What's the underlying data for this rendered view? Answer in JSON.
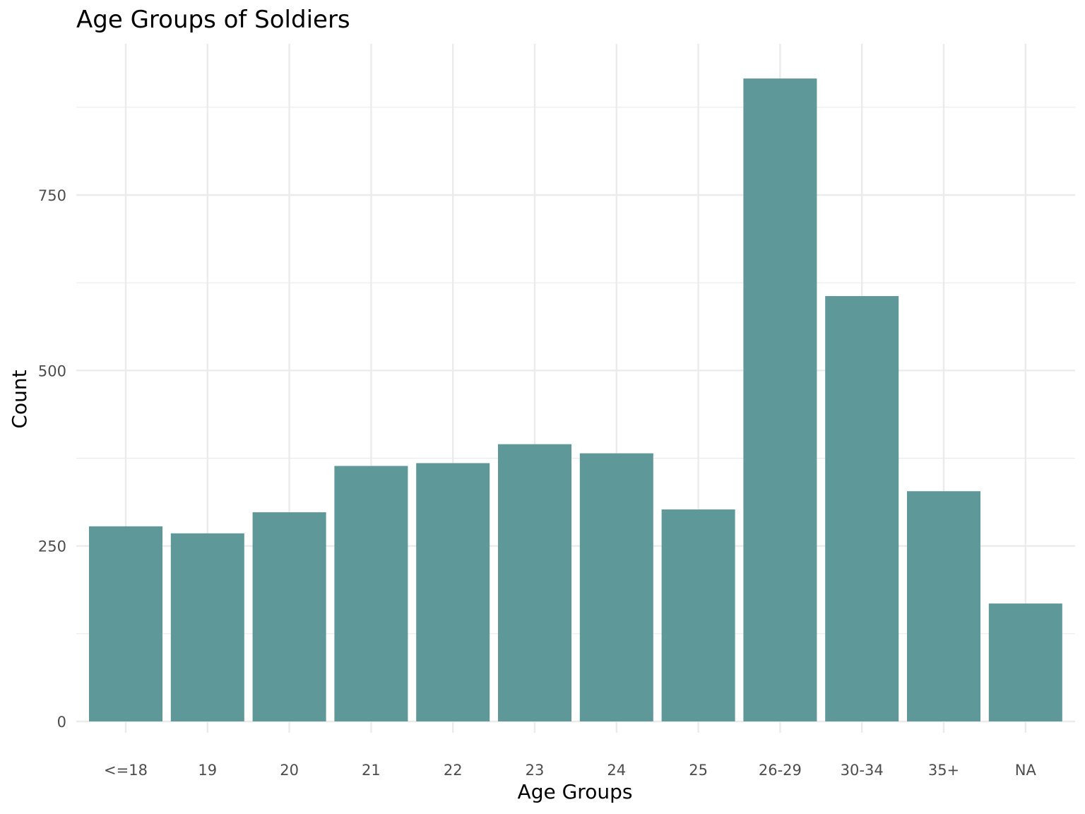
{
  "chart_data": {
    "type": "bar",
    "title": "Age Groups of Soldiers",
    "xlabel": "Age Groups",
    "ylabel": "Count",
    "categories": [
      "<=18",
      "19",
      "20",
      "21",
      "22",
      "23",
      "24",
      "25",
      "26-29",
      "30-34",
      "35+",
      "NA"
    ],
    "values": [
      278,
      268,
      298,
      364,
      368,
      395,
      382,
      302,
      916,
      606,
      328,
      168
    ],
    "ylim": [
      0,
      963
    ],
    "yticks": [
      0,
      250,
      500,
      750
    ],
    "grid": true,
    "legend": "none",
    "bar_color": "#5f9898",
    "grid_color": "#ebebeb"
  }
}
